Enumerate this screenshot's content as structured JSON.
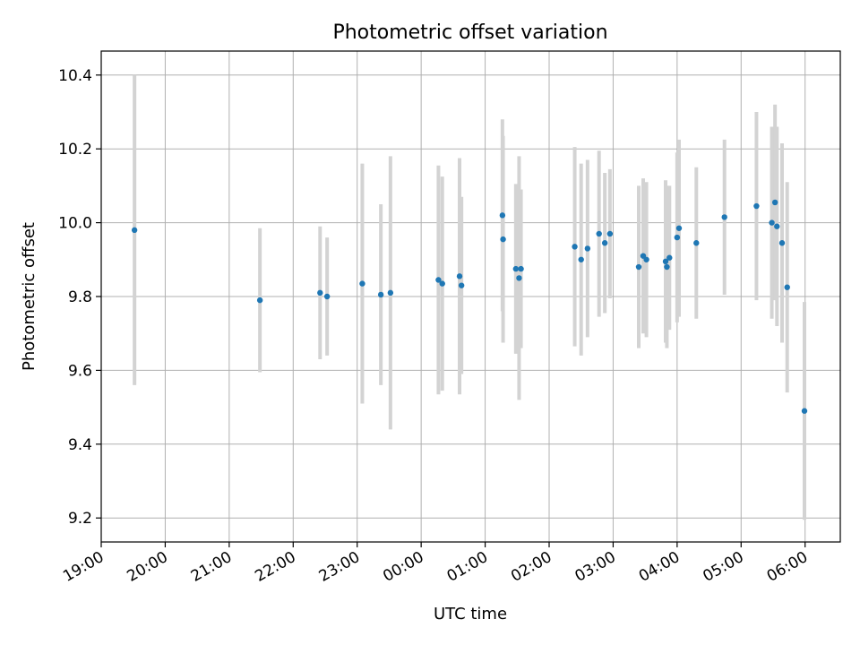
{
  "chart_data": {
    "type": "scatter",
    "title": "Photometric offset variation",
    "xlabel": "UTC time",
    "ylabel": "Photometric offset",
    "grid": true,
    "x_unit": "hours",
    "xlim": [
      0.0,
      11.55
    ],
    "ylim": [
      9.135,
      10.465
    ],
    "x_ticks": [
      {
        "value": 0,
        "label": "19:00"
      },
      {
        "value": 1,
        "label": "20:00"
      },
      {
        "value": 2,
        "label": "21:00"
      },
      {
        "value": 3,
        "label": "22:00"
      },
      {
        "value": 4,
        "label": "23:00"
      },
      {
        "value": 5,
        "label": "00:00"
      },
      {
        "value": 6,
        "label": "01:00"
      },
      {
        "value": 7,
        "label": "02:00"
      },
      {
        "value": 8,
        "label": "03:00"
      },
      {
        "value": 9,
        "label": "04:00"
      },
      {
        "value": 10,
        "label": "05:00"
      },
      {
        "value": 11,
        "label": "06:00"
      }
    ],
    "y_ticks": [
      {
        "value": 9.2,
        "label": "9.2"
      },
      {
        "value": 9.4,
        "label": "9.4"
      },
      {
        "value": 9.6,
        "label": "9.6"
      },
      {
        "value": 9.8,
        "label": "9.8"
      },
      {
        "value": 10.0,
        "label": "10.0"
      },
      {
        "value": 10.2,
        "label": "10.2"
      },
      {
        "value": 10.4,
        "label": "10.4"
      }
    ],
    "colors": {
      "point": "#1f77b4",
      "errorbar": "#d3d3d3",
      "grid": "#b0b0b0"
    },
    "points": [
      {
        "x": 0.52,
        "y": 9.98,
        "err": 0.42
      },
      {
        "x": 2.48,
        "y": 9.79,
        "err": 0.195
      },
      {
        "x": 3.42,
        "y": 9.81,
        "err": 0.18
      },
      {
        "x": 3.53,
        "y": 9.8,
        "err": 0.16
      },
      {
        "x": 4.08,
        "y": 9.835,
        "err": 0.325
      },
      {
        "x": 4.37,
        "y": 9.805,
        "err": 0.245
      },
      {
        "x": 4.52,
        "y": 9.81,
        "err": 0.37
      },
      {
        "x": 5.27,
        "y": 9.845,
        "err": 0.31
      },
      {
        "x": 5.33,
        "y": 9.835,
        "err": 0.29
      },
      {
        "x": 5.6,
        "y": 9.855,
        "err": 0.32
      },
      {
        "x": 5.63,
        "y": 9.83,
        "err": 0.24
      },
      {
        "x": 6.27,
        "y": 10.02,
        "err": 0.26
      },
      {
        "x": 6.28,
        "y": 9.955,
        "err": 0.28
      },
      {
        "x": 6.48,
        "y": 9.875,
        "err": 0.23
      },
      {
        "x": 6.53,
        "y": 9.85,
        "err": 0.33
      },
      {
        "x": 6.56,
        "y": 9.875,
        "err": 0.215
      },
      {
        "x": 7.4,
        "y": 9.935,
        "err": 0.27
      },
      {
        "x": 7.5,
        "y": 9.9,
        "err": 0.26
      },
      {
        "x": 7.6,
        "y": 9.93,
        "err": 0.24
      },
      {
        "x": 7.78,
        "y": 9.97,
        "err": 0.225
      },
      {
        "x": 7.87,
        "y": 9.945,
        "err": 0.19
      },
      {
        "x": 7.95,
        "y": 9.97,
        "err": 0.175
      },
      {
        "x": 8.4,
        "y": 9.88,
        "err": 0.22
      },
      {
        "x": 8.47,
        "y": 9.91,
        "err": 0.21
      },
      {
        "x": 8.52,
        "y": 9.9,
        "err": 0.21
      },
      {
        "x": 8.82,
        "y": 9.895,
        "err": 0.22
      },
      {
        "x": 8.84,
        "y": 9.88,
        "err": 0.22
      },
      {
        "x": 8.88,
        "y": 9.905,
        "err": 0.195
      },
      {
        "x": 9.0,
        "y": 9.96,
        "err": 0.23
      },
      {
        "x": 9.03,
        "y": 9.985,
        "err": 0.24
      },
      {
        "x": 9.3,
        "y": 9.945,
        "err": 0.205
      },
      {
        "x": 9.74,
        "y": 10.015,
        "err": 0.21
      },
      {
        "x": 10.24,
        "y": 10.045,
        "err": 0.255
      },
      {
        "x": 10.48,
        "y": 10.0,
        "err": 0.26
      },
      {
        "x": 10.53,
        "y": 10.055,
        "err": 0.265
      },
      {
        "x": 10.56,
        "y": 9.99,
        "err": 0.27
      },
      {
        "x": 10.64,
        "y": 9.945,
        "err": 0.27
      },
      {
        "x": 10.72,
        "y": 9.825,
        "err": 0.285
      },
      {
        "x": 10.99,
        "y": 9.49,
        "err": 0.295
      }
    ]
  }
}
